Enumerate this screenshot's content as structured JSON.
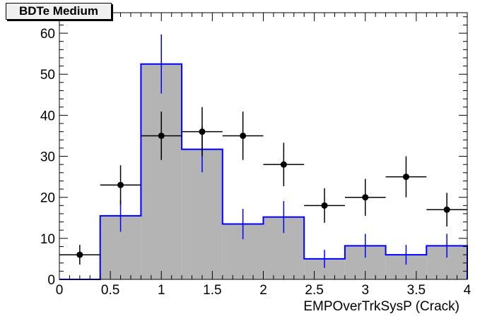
{
  "chart_data": {
    "type": "bar",
    "title": "BDTe Medium",
    "xlabel": "EMPOverTrkSysP (Crack)",
    "ylabel": "",
    "xlim": [
      0,
      4
    ],
    "ylim": [
      0,
      65
    ],
    "x_ticks": [
      "0",
      "0.5",
      "1",
      "1.5",
      "2",
      "2.5",
      "3",
      "3.5",
      "4"
    ],
    "y_ticks": [
      "0",
      "10",
      "20",
      "30",
      "40",
      "50",
      "60"
    ],
    "bin_edges": [
      0,
      0.4,
      0.8,
      1.2,
      1.6,
      2.0,
      2.4,
      2.8,
      3.2,
      3.6,
      4.0
    ],
    "series": [
      {
        "kind": "histogram",
        "values": [
          0,
          15.5,
          52.5,
          31.7,
          13.5,
          15.2,
          5,
          8.2,
          6,
          8.2
        ],
        "errors": [
          0,
          3.9,
          7.2,
          5.6,
          3.7,
          3.9,
          2.2,
          2.9,
          2.4,
          2.9
        ],
        "fill": "#b4b4b4",
        "line": "#0000ff"
      },
      {
        "kind": "points",
        "x": [
          0.2,
          0.6,
          1.0,
          1.4,
          1.8,
          2.2,
          2.6,
          3.0,
          3.4,
          3.8
        ],
        "values": [
          6,
          23,
          35,
          36,
          35,
          28,
          18,
          20,
          25,
          17
        ],
        "errors": [
          2.4,
          4.8,
          5.9,
          6.0,
          5.9,
          5.3,
          4.2,
          4.5,
          5.0,
          4.1
        ],
        "color": "#000000"
      }
    ],
    "grid": false,
    "legend": "none"
  }
}
